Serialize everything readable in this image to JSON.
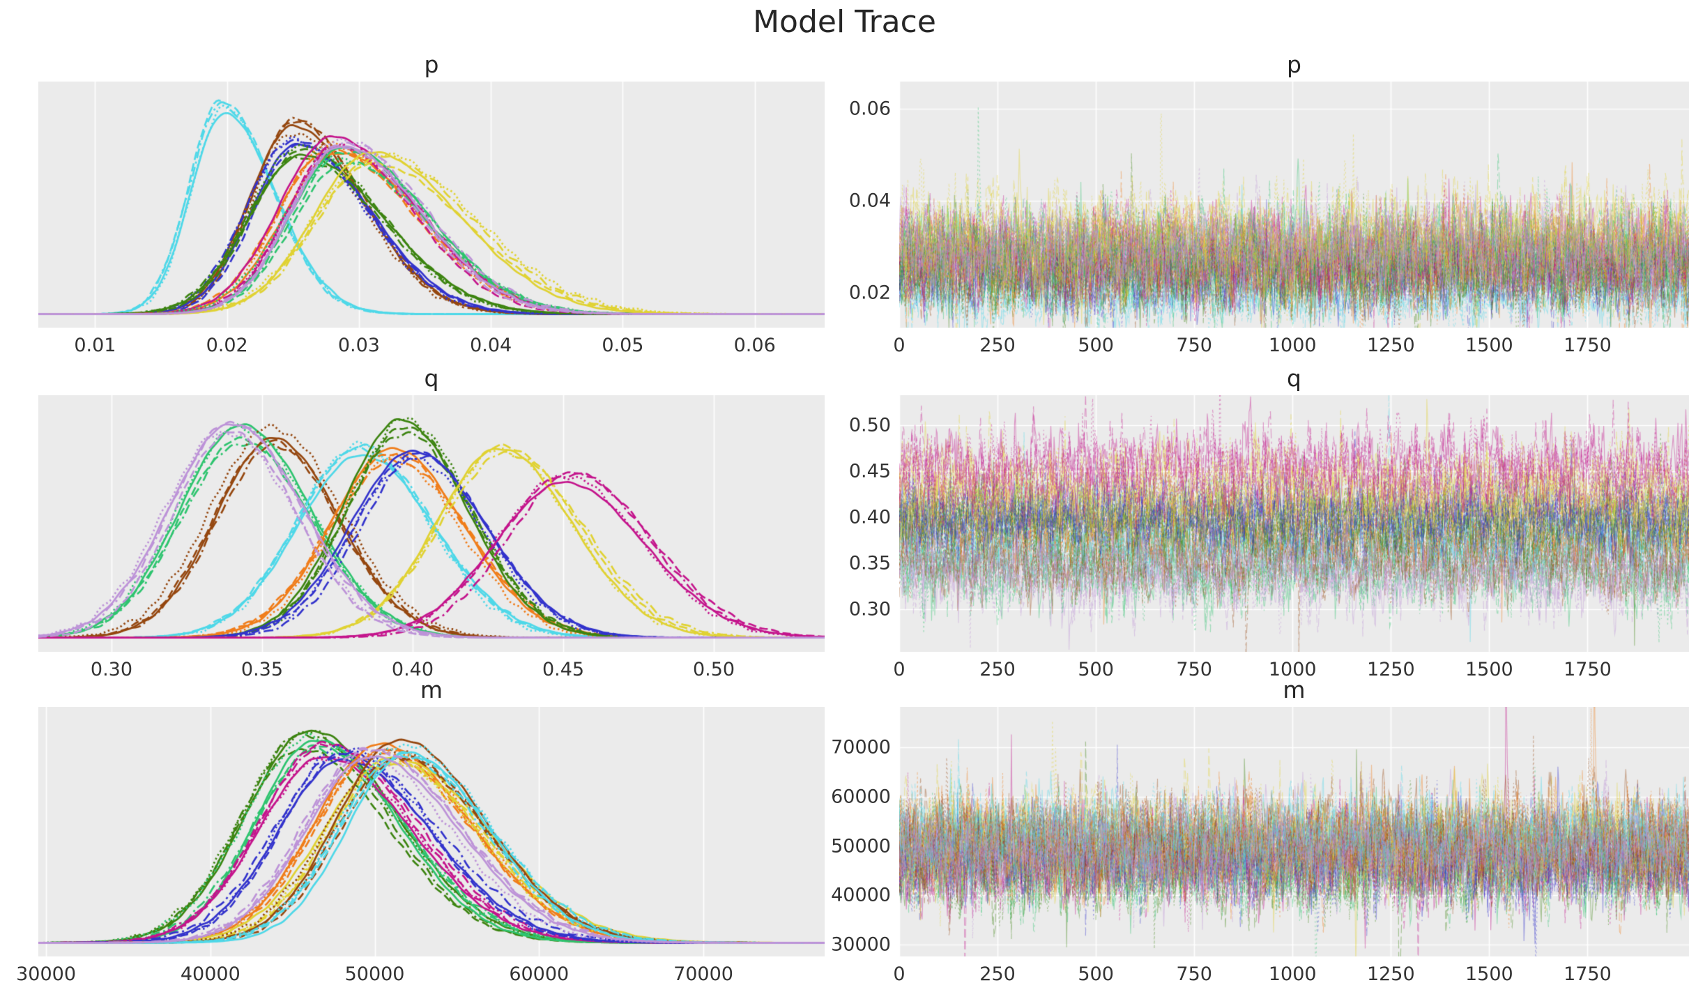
{
  "figure": {
    "title": "Model Trace",
    "background": "#ffffff",
    "axes_background": "#ebebeb",
    "grid_color": "#ffffff",
    "text_color": "#333333",
    "title_color": "#262626"
  },
  "chains": {
    "per_color": 4,
    "linestyles": [
      "solid",
      "dashed",
      "dashdot",
      "dotted"
    ]
  },
  "chart_data": [
    {
      "id": "p-density",
      "type": "line",
      "variant": "kde",
      "title": "p",
      "xlabel": "",
      "ylabel": "",
      "grid": "vertical",
      "xlim": [
        0.0057,
        0.0653
      ],
      "x_ticks": [
        0.01,
        0.02,
        0.03,
        0.04,
        0.05,
        0.06
      ],
      "x_tick_labels": [
        "0.01",
        "0.02",
        "0.03",
        "0.04",
        "0.05",
        "0.06"
      ],
      "skew": 1.22,
      "series": [
        {
          "name": "cyan",
          "color": "#4ed8e8",
          "mean": 0.0197,
          "sd": 0.0032,
          "peak_height": 0.97
        },
        {
          "name": "brown",
          "color": "#95470f",
          "mean": 0.0249,
          "sd": 0.0042,
          "peak_height": 0.86
        },
        {
          "name": "blue",
          "color": "#3333cc",
          "mean": 0.0252,
          "sd": 0.0046,
          "peak_height": 0.8
        },
        {
          "name": "green",
          "color": "#3c8410",
          "mean": 0.0257,
          "sd": 0.005,
          "peak_height": 0.74
        },
        {
          "name": "orange",
          "color": "#f07d1a",
          "mean": 0.0281,
          "sd": 0.0051,
          "peak_height": 0.76
        },
        {
          "name": "magenta",
          "color": "#c4148c",
          "mean": 0.0283,
          "sd": 0.005,
          "peak_height": 0.78
        },
        {
          "name": "emerald",
          "color": "#2ec46f",
          "mean": 0.0287,
          "sd": 0.0052,
          "peak_height": 0.73
        },
        {
          "name": "yellow",
          "color": "#e0d232",
          "mean": 0.0313,
          "sd": 0.0058,
          "peak_height": 0.71
        },
        {
          "name": "plum",
          "color": "#bd93d8",
          "mean": 0.0288,
          "sd": 0.005,
          "peak_height": 0.8
        }
      ]
    },
    {
      "id": "p-trace",
      "type": "line",
      "variant": "trace",
      "title": "p",
      "xlabel": "",
      "ylabel": "",
      "grid": "both",
      "xlim": [
        0,
        2008
      ],
      "ylim": [
        0.0124,
        0.0659
      ],
      "x_ticks": [
        0,
        250,
        500,
        750,
        1000,
        1250,
        1500,
        1750
      ],
      "x_tick_labels": [
        "0",
        "250",
        "500",
        "750",
        "1000",
        "1250",
        "1500",
        "1750"
      ],
      "y_ticks": [
        0.02,
        0.04,
        0.06
      ],
      "y_tick_labels": [
        "0.02",
        "0.04",
        "0.06"
      ],
      "series": [
        {
          "name": "cyan",
          "color": "#4ed8e8",
          "mean": 0.0197,
          "sd": 0.0032
        },
        {
          "name": "brown",
          "color": "#95470f",
          "mean": 0.0249,
          "sd": 0.0042
        },
        {
          "name": "blue",
          "color": "#3333cc",
          "mean": 0.0252,
          "sd": 0.0046
        },
        {
          "name": "green",
          "color": "#3c8410",
          "mean": 0.0257,
          "sd": 0.005
        },
        {
          "name": "orange",
          "color": "#f07d1a",
          "mean": 0.0281,
          "sd": 0.0051
        },
        {
          "name": "magenta",
          "color": "#c4148c",
          "mean": 0.0283,
          "sd": 0.005
        },
        {
          "name": "emerald",
          "color": "#2ec46f",
          "mean": 0.0287,
          "sd": 0.0052
        },
        {
          "name": "yellow",
          "color": "#e0d232",
          "mean": 0.0313,
          "sd": 0.0058
        },
        {
          "name": "plum",
          "color": "#bd93d8",
          "mean": 0.0288,
          "sd": 0.005
        }
      ]
    },
    {
      "id": "q-density",
      "type": "line",
      "variant": "kde",
      "title": "q",
      "xlabel": "",
      "ylabel": "",
      "grid": "vertical",
      "xlim": [
        0.2757,
        0.5368
      ],
      "x_ticks": [
        0.3,
        0.35,
        0.4,
        0.45,
        0.5
      ],
      "x_tick_labels": [
        "0.30",
        "0.35",
        "0.40",
        "0.45",
        "0.50"
      ],
      "skew": 1.06,
      "series": [
        {
          "name": "emerald",
          "color": "#2ec46f",
          "mean": 0.344,
          "sd": 0.0215,
          "peak_height": 0.9
        },
        {
          "name": "brown",
          "color": "#95470f",
          "mean": 0.354,
          "sd": 0.021,
          "peak_height": 0.89
        },
        {
          "name": "cyan",
          "color": "#4ed8e8",
          "mean": 0.382,
          "sd": 0.022,
          "peak_height": 0.82
        },
        {
          "name": "orange",
          "color": "#f07d1a",
          "mean": 0.394,
          "sd": 0.022,
          "peak_height": 0.8
        },
        {
          "name": "green",
          "color": "#3c8410",
          "mean": 0.397,
          "sd": 0.021,
          "peak_height": 0.92
        },
        {
          "name": "blue",
          "color": "#3333cc",
          "mean": 0.401,
          "sd": 0.0215,
          "peak_height": 0.82
        },
        {
          "name": "yellow",
          "color": "#e0d232",
          "mean": 0.43,
          "sd": 0.0235,
          "peak_height": 0.84
        },
        {
          "name": "magenta",
          "color": "#c4148c",
          "mean": 0.452,
          "sd": 0.0245,
          "peak_height": 0.7
        },
        {
          "name": "plum",
          "color": "#bd93d8",
          "mean": 0.339,
          "sd": 0.0215,
          "peak_height": 0.93
        }
      ]
    },
    {
      "id": "q-trace",
      "type": "line",
      "variant": "trace",
      "title": "q",
      "xlabel": "",
      "ylabel": "",
      "grid": "both",
      "xlim": [
        0,
        2008
      ],
      "ylim": [
        0.2535,
        0.5326
      ],
      "x_ticks": [
        0,
        250,
        500,
        750,
        1000,
        1250,
        1500,
        1750
      ],
      "x_tick_labels": [
        "0",
        "250",
        "500",
        "750",
        "1000",
        "1250",
        "1500",
        "1750"
      ],
      "y_ticks": [
        0.3,
        0.35,
        0.4,
        0.45,
        0.5
      ],
      "y_tick_labels": [
        "0.30",
        "0.35",
        "0.40",
        "0.45",
        "0.50"
      ],
      "series": [
        {
          "name": "emerald",
          "color": "#2ec46f",
          "mean": 0.344,
          "sd": 0.0215
        },
        {
          "name": "brown",
          "color": "#95470f",
          "mean": 0.354,
          "sd": 0.021
        },
        {
          "name": "cyan",
          "color": "#4ed8e8",
          "mean": 0.382,
          "sd": 0.022
        },
        {
          "name": "orange",
          "color": "#f07d1a",
          "mean": 0.394,
          "sd": 0.022
        },
        {
          "name": "green",
          "color": "#3c8410",
          "mean": 0.397,
          "sd": 0.021
        },
        {
          "name": "blue",
          "color": "#3333cc",
          "mean": 0.401,
          "sd": 0.0215
        },
        {
          "name": "yellow",
          "color": "#e0d232",
          "mean": 0.43,
          "sd": 0.0235
        },
        {
          "name": "magenta",
          "color": "#c4148c",
          "mean": 0.452,
          "sd": 0.0245
        },
        {
          "name": "plum",
          "color": "#bd93d8",
          "mean": 0.339,
          "sd": 0.0215
        }
      ]
    },
    {
      "id": "m-density",
      "type": "line",
      "variant": "kde",
      "title": "m",
      "xlabel": "",
      "ylabel": "",
      "grid": "vertical",
      "xlim": [
        29530,
        77380
      ],
      "x_ticks": [
        30000,
        40000,
        50000,
        60000,
        70000
      ],
      "x_tick_labels": [
        "30000",
        "40000",
        "50000",
        "60000",
        "70000"
      ],
      "skew": 1.15,
      "series": [
        {
          "name": "green",
          "color": "#3c8410",
          "mean": 45800,
          "sd": 4600,
          "peak_height": 0.92
        },
        {
          "name": "emerald",
          "color": "#2ec46f",
          "mean": 46400,
          "sd": 4500,
          "peak_height": 0.9
        },
        {
          "name": "magenta",
          "color": "#c4148c",
          "mean": 47100,
          "sd": 4600,
          "peak_height": 0.88
        },
        {
          "name": "blue",
          "color": "#3333cc",
          "mean": 48200,
          "sd": 4700,
          "peak_height": 0.86
        },
        {
          "name": "orange",
          "color": "#f07d1a",
          "mean": 50300,
          "sd": 4700,
          "peak_height": 0.86
        },
        {
          "name": "yellow",
          "color": "#e0d232",
          "mean": 51000,
          "sd": 4800,
          "peak_height": 0.84
        },
        {
          "name": "brown",
          "color": "#95470f",
          "mean": 51500,
          "sd": 4600,
          "peak_height": 0.88
        },
        {
          "name": "cyan",
          "color": "#4ed8e8",
          "mean": 51800,
          "sd": 4500,
          "peak_height": 0.86
        },
        {
          "name": "plum",
          "color": "#bd93d8",
          "mean": 49800,
          "sd": 4600,
          "peak_height": 0.85
        }
      ]
    },
    {
      "id": "m-trace",
      "type": "line",
      "variant": "trace",
      "title": "m",
      "xlabel": "",
      "ylabel": "",
      "grid": "both",
      "xlim": [
        0,
        2008
      ],
      "ylim": [
        27600,
        78200
      ],
      "x_ticks": [
        0,
        250,
        500,
        750,
        1000,
        1250,
        1500,
        1750
      ],
      "x_tick_labels": [
        "0",
        "250",
        "500",
        "750",
        "1000",
        "1250",
        "1500",
        "1750"
      ],
      "y_ticks": [
        30000,
        40000,
        50000,
        60000,
        70000
      ],
      "y_tick_labels": [
        "30000",
        "40000",
        "50000",
        "60000",
        "70000"
      ],
      "series": [
        {
          "name": "green",
          "color": "#3c8410",
          "mean": 45800,
          "sd": 4600
        },
        {
          "name": "emerald",
          "color": "#2ec46f",
          "mean": 46400,
          "sd": 4500
        },
        {
          "name": "magenta",
          "color": "#c4148c",
          "mean": 47100,
          "sd": 4600
        },
        {
          "name": "blue",
          "color": "#3333cc",
          "mean": 48200,
          "sd": 4700
        },
        {
          "name": "orange",
          "color": "#f07d1a",
          "mean": 50300,
          "sd": 4700
        },
        {
          "name": "yellow",
          "color": "#e0d232",
          "mean": 51000,
          "sd": 4800
        },
        {
          "name": "brown",
          "color": "#95470f",
          "mean": 51500,
          "sd": 4600
        },
        {
          "name": "cyan",
          "color": "#4ed8e8",
          "mean": 51800,
          "sd": 4500
        },
        {
          "name": "plum",
          "color": "#bd93d8",
          "mean": 49800,
          "sd": 4600
        }
      ]
    }
  ]
}
